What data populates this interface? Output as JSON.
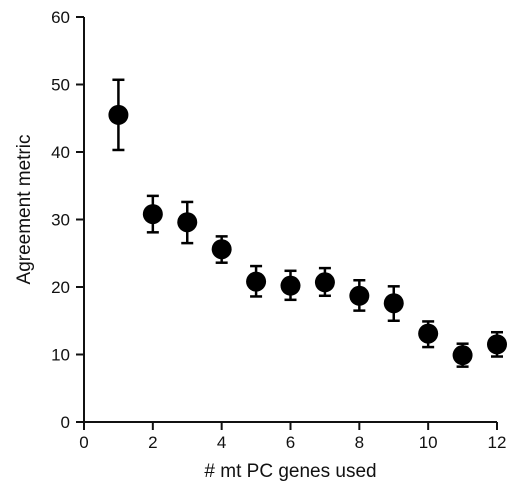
{
  "chart_data": {
    "type": "scatter",
    "title": "",
    "xlabel": "# mt PC genes used",
    "ylabel": "Agreement metric",
    "xlim": [
      0,
      12
    ],
    "ylim": [
      0,
      60
    ],
    "xticks": [
      0,
      2,
      4,
      6,
      8,
      10,
      12
    ],
    "yticks": [
      0,
      10,
      20,
      30,
      40,
      50,
      60
    ],
    "grid": false,
    "legend": "none",
    "marker_color": "#000000",
    "series": [
      {
        "x": [
          1,
          2,
          3,
          4,
          5,
          6,
          7,
          8,
          9,
          10,
          11,
          12
        ],
        "y": [
          45.5,
          30.8,
          29.6,
          25.6,
          20.8,
          20.2,
          20.7,
          18.7,
          17.6,
          13.1,
          9.9,
          11.5
        ],
        "error_low": [
          40.3,
          28.1,
          26.5,
          23.6,
          18.6,
          18.1,
          18.7,
          16.5,
          15.0,
          11.1,
          8.2,
          9.7
        ],
        "error_high": [
          50.7,
          33.5,
          32.6,
          27.5,
          23.1,
          22.4,
          22.8,
          21.0,
          20.1,
          14.9,
          11.6,
          13.3
        ]
      }
    ]
  }
}
